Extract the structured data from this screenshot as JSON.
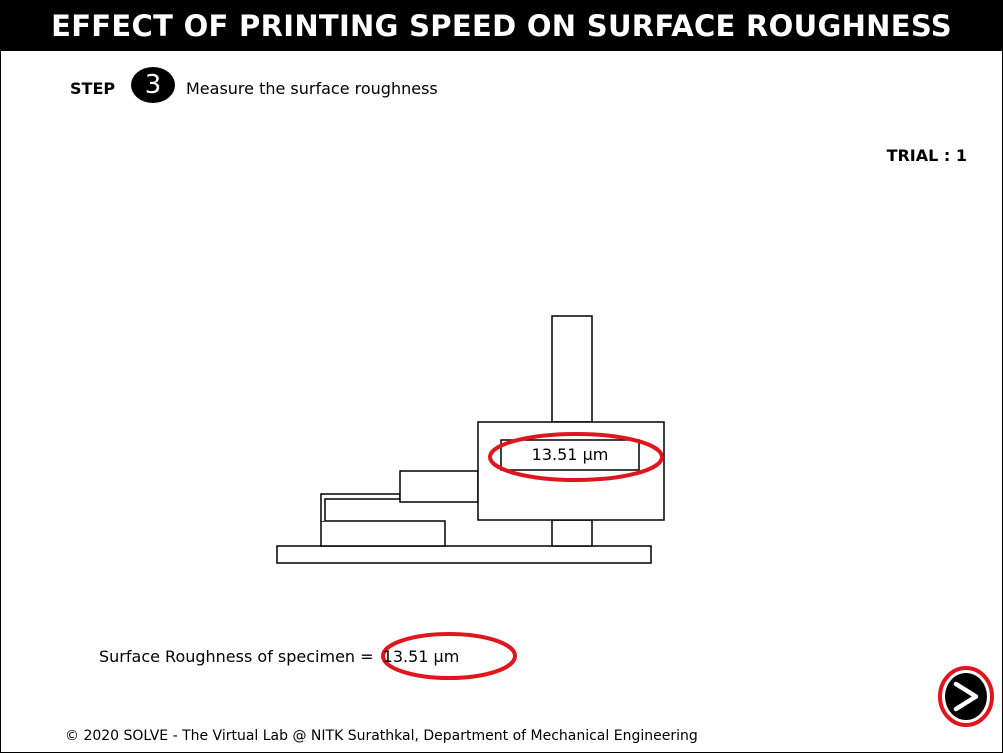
{
  "header": {
    "title": "EFFECT OF PRINTING SPEED ON SURFACE ROUGHNESS"
  },
  "step": {
    "label": "STEP",
    "number": "3",
    "instruction": "Measure the surface roughness"
  },
  "trial": {
    "text": "TRIAL : 1"
  },
  "device": {
    "display_value": "13.51 µm"
  },
  "result": {
    "label": "Surface Roughness of specimen",
    "equals": "=",
    "value": "13.51 µm"
  },
  "navigation": {
    "next_icon": "next-arrow-icon"
  },
  "footer": {
    "text": "© 2020 SOLVE - The Virtual Lab @ NITK Surathkal, Department of Mechanical Engineering"
  },
  "colors": {
    "highlight": "#e0161e",
    "title_background": "#000000",
    "title_text": "#ffffff"
  }
}
